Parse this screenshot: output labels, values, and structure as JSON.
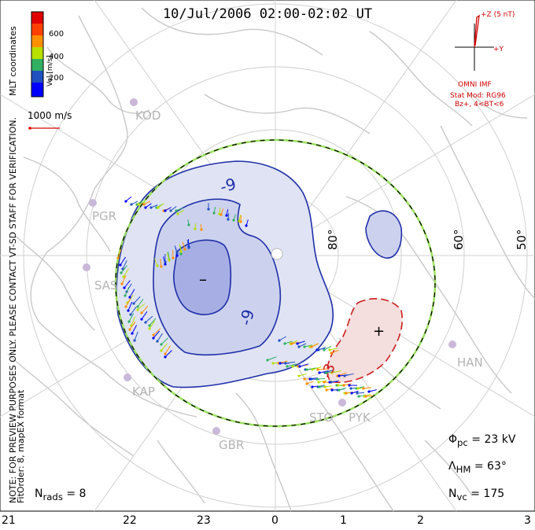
{
  "title": "10/Jul/2006 02:00-02:02 UT",
  "side_note": "NOTE: FOR PREVIEW PURPOSES ONLY. PLEASE CONTACT VT-SD STAFF FOR VERIFICATION.",
  "fit_info": "FitOrder: 8,  mapEX format",
  "coords_label": "MLT coordinates",
  "colorbar": {
    "label": "Vel [m/s]",
    "ticks": [
      "600",
      "400",
      "200"
    ],
    "colors": [
      "#e00000",
      "#ff7000",
      "#ffd000",
      "#80e000",
      "#00b070",
      "#2050c0",
      "#0000ff"
    ]
  },
  "vector_scale": "1000 m/s",
  "imf": {
    "axis_z": "+Z (5 nT)",
    "axis_y": "+Y",
    "source": "OMNI IMF",
    "model": "Stat Mod: RG96",
    "condition": "Bz+, 4<BT<6"
  },
  "latitude_labels": [
    "80°",
    "60°",
    "50°"
  ],
  "stations": [
    "KOD",
    "PGR",
    "SAS",
    "KAP",
    "GBR",
    "STO",
    "PYK",
    "HAN"
  ],
  "contour_labels": [
    "-9",
    "-9",
    "-3"
  ],
  "potential_symbols": {
    "min": "–",
    "max": "+"
  },
  "stats": {
    "nrads": "N<sub>rads</sub> = 8",
    "phi": "Φ<sub>pc</sub> = 23 kV",
    "lambda": "Λ<sub>HM</sub> = 63°",
    "nvc": "N<sub>vc</sub> = 175"
  },
  "mlt_labels": [
    "21",
    "22",
    "23",
    "0",
    "1",
    "2",
    "3"
  ],
  "colors": {
    "negative_cell": "#1f2fa8",
    "positive_cell": "#cc1f1f",
    "boundary": "#9be060",
    "coastline": "#c8c8c8",
    "grid": "#d0d0d0"
  }
}
